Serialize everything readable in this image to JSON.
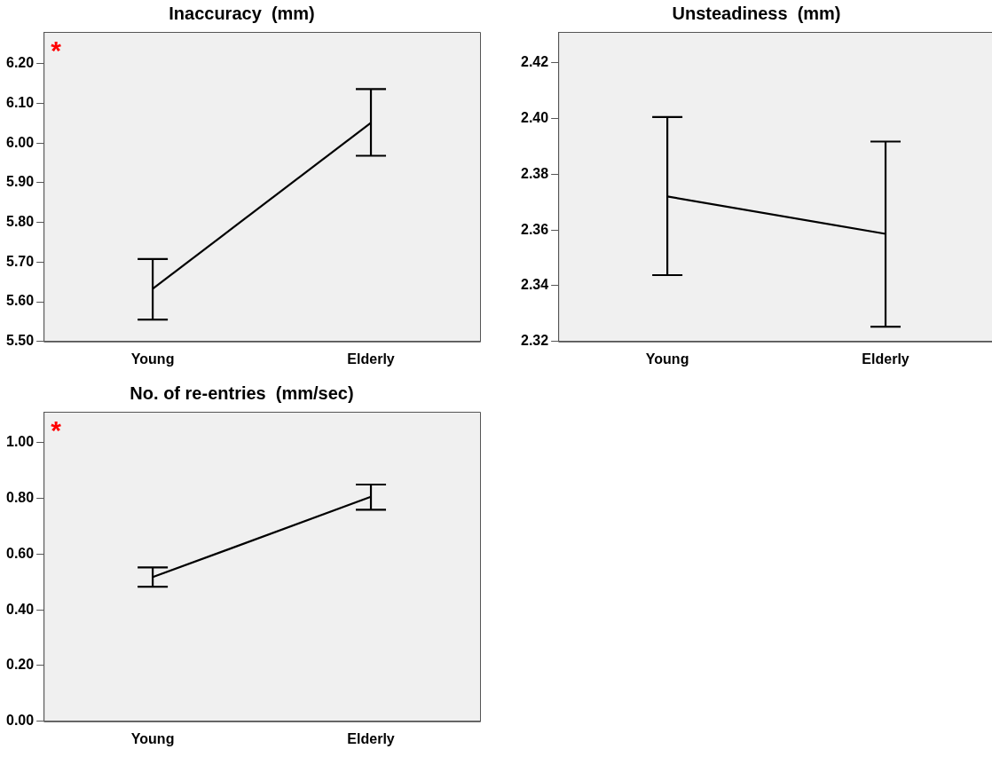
{
  "chart_data": [
    {
      "type": "line",
      "title": "Inaccuracy  (mm)",
      "categories": [
        "Young",
        "Elderly"
      ],
      "series": [
        {
          "color": "#000000",
          "values": [
            5.633,
            6.051
          ],
          "errors": [
            [
              5.555,
              5.708
            ],
            [
              5.968,
              6.136
            ]
          ]
        }
      ],
      "ylim": [
        5.5,
        6.28
      ],
      "yticks": [
        {
          "value": 5.5,
          "label": "5.50"
        },
        {
          "value": 5.6,
          "label": "5.60"
        },
        {
          "value": 5.7,
          "label": "5.70"
        },
        {
          "value": 5.8,
          "label": "5.80"
        },
        {
          "value": 5.9,
          "label": "5.90"
        },
        {
          "value": 6.0,
          "label": "6.00"
        },
        {
          "value": 6.1,
          "label": "6.10"
        },
        {
          "value": 6.2,
          "label": "6.20"
        }
      ],
      "grid": false,
      "legend": false,
      "marker": "none",
      "annotations": [
        "*"
      ]
    },
    {
      "type": "line",
      "title": "Unsteadiness  (mm)",
      "categories": [
        "Young",
        "Elderly"
      ],
      "series": [
        {
          "color": "#000000",
          "values": [
            2.372,
            2.3586
          ],
          "errors": [
            [
              2.3438,
              2.4005
            ],
            [
              2.3253,
              2.3917
            ]
          ]
        }
      ],
      "ylim": [
        2.32,
        2.431
      ],
      "yticks": [
        {
          "value": 2.32,
          "label": "2.32"
        },
        {
          "value": 2.34,
          "label": "2.34"
        },
        {
          "value": 2.36,
          "label": "2.36"
        },
        {
          "value": 2.38,
          "label": "2.38"
        },
        {
          "value": 2.4,
          "label": "2.40"
        },
        {
          "value": 2.42,
          "label": "2.42"
        }
      ],
      "grid": false,
      "legend": false,
      "marker": "none"
    },
    {
      "type": "line",
      "title": "No. of re-entries  (mm/sec)",
      "categories": [
        "Young",
        "Elderly"
      ],
      "series": [
        {
          "color": "#000000",
          "values": [
            0.517,
            0.805
          ],
          "errors": [
            [
              0.483,
              0.552
            ],
            [
              0.759,
              0.849
            ]
          ]
        }
      ],
      "ylim": [
        0,
        1.11
      ],
      "yticks": [
        {
          "value": 0,
          "label": "0.00"
        },
        {
          "value": 0.2,
          "label": "0.20"
        },
        {
          "value": 0.4,
          "label": "0.40"
        },
        {
          "value": 0.6,
          "label": "0.60"
        },
        {
          "value": 0.8,
          "label": "0.80"
        },
        {
          "value": 1.0,
          "label": "1.00"
        }
      ],
      "grid": false,
      "legend": false,
      "marker": "none",
      "annotations": [
        "*"
      ]
    }
  ]
}
